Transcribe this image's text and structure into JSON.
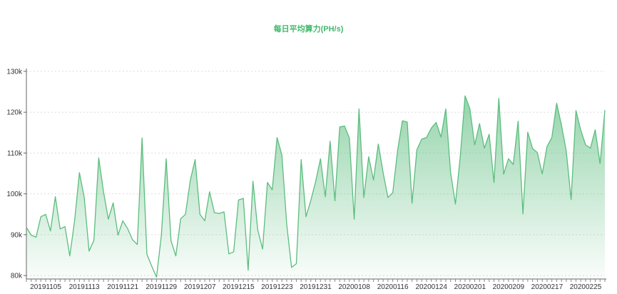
{
  "chart_data": {
    "type": "area",
    "title": "每日平均算力(PH/s)",
    "xlabel": "",
    "ylabel": "",
    "ylim": [
      79,
      130
    ],
    "y_ticks": [
      {
        "value": 80,
        "label": "80k"
      },
      {
        "value": 90,
        "label": "90k"
      },
      {
        "value": 100,
        "label": "100k"
      },
      {
        "value": 110,
        "label": "110k"
      },
      {
        "value": 120,
        "label": "120k"
      },
      {
        "value": 130,
        "label": "130k"
      }
    ],
    "x_tick_labels": [
      "20191105",
      "20191113",
      "20191121",
      "20191129",
      "20191207",
      "20191215",
      "20191223",
      "20191231",
      "20200108",
      "20200116",
      "20200124",
      "20200201",
      "20200209",
      "20200217",
      "20200225"
    ],
    "grid": true,
    "legend": "none",
    "color": "#5bbd7e",
    "series": [
      {
        "values": [
          91.8,
          89.9,
          89.4,
          94.4,
          95.0,
          90.9,
          99.3,
          91.4,
          92.0,
          84.8,
          93.4,
          105.2,
          99.1,
          86.0,
          88.6,
          108.8,
          100.5,
          93.8,
          97.8,
          89.9,
          93.4,
          91.5,
          88.8,
          87.6,
          113.7,
          85.2,
          82.3,
          79.6,
          89.9,
          108.6,
          88.5,
          84.8,
          93.9,
          95.0,
          103.3,
          108.4,
          95.0,
          93.4,
          100.5,
          95.4,
          95.2,
          95.6,
          85.3,
          85.8,
          98.5,
          98.9,
          81.3,
          103.1,
          91.1,
          86.5,
          102.8,
          101.0,
          113.8,
          109.5,
          92.6,
          82.0,
          82.9,
          108.4,
          94.4,
          98.4,
          103.0,
          108.6,
          99.3,
          112.9,
          98.3,
          116.4,
          116.6,
          113.7,
          93.8,
          120.8,
          99.1,
          109.1,
          103.4,
          112.2,
          105.2,
          99.1,
          100.3,
          110.6,
          117.9,
          117.6,
          97.7,
          110.8,
          113.4,
          113.8,
          116.1,
          117.5,
          113.9,
          120.8,
          105.2,
          97.5,
          109.1,
          124.0,
          120.8,
          112.0,
          117.2,
          111.2,
          114.6,
          102.8,
          123.4,
          104.8,
          108.6,
          107.2,
          117.8,
          95.1,
          115.1,
          111.1,
          110.1,
          104.9,
          111.6,
          113.8,
          122.2,
          116.8,
          110.4,
          98.6,
          120.4,
          115.6,
          112.0,
          111.2,
          115.7,
          107.4,
          120.5
        ]
      }
    ]
  }
}
